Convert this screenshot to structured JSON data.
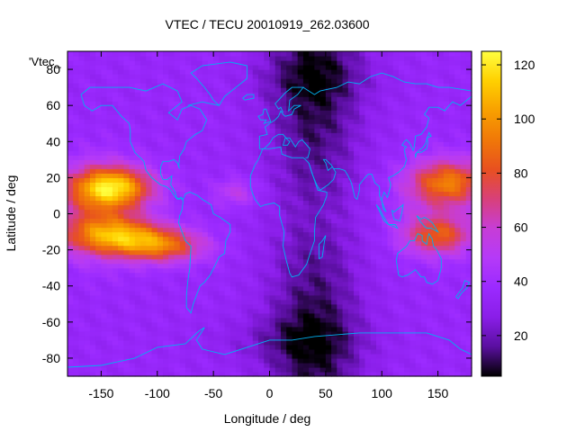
{
  "chart_data": {
    "type": "heatmap",
    "title": "VTEC / TECU 20010919_262.03600",
    "xlabel": "Longitude / deg",
    "ylabel": "Latitude / deg",
    "series_label": "'Vtec_",
    "xlim": [
      -180,
      180
    ],
    "ylim": [
      -90,
      90
    ],
    "x_ticks": [
      -150,
      -100,
      -50,
      0,
      50,
      100,
      150
    ],
    "y_ticks": [
      -80,
      -60,
      -40,
      -20,
      0,
      20,
      40,
      60,
      80
    ],
    "colorbar": {
      "range": [
        5,
        125
      ],
      "ticks": [
        20,
        40,
        60,
        80,
        100,
        120
      ],
      "palette": [
        "#000000",
        "#5a0fa0",
        "#8a1ee8",
        "#9b2aff",
        "#b53af8",
        "#c73dd6",
        "#d8407a",
        "#e85020",
        "#f07808",
        "#f8a000",
        "#ffd000",
        "#ffff40"
      ]
    },
    "features": {
      "daytime_crest_west": {
        "lon_range": [
          -180,
          -60
        ],
        "lat_range": [
          -35,
          35
        ],
        "peak_value": 120,
        "peak_at": [
          -140,
          15
        ]
      },
      "daytime_crest_east": {
        "lon_range": [
          110,
          180
        ],
        "lat_range": [
          -25,
          35
        ],
        "peak_value": 90
      },
      "night_trough": {
        "lon_range": [
          -10,
          90
        ],
        "lat_range": [
          -90,
          90
        ],
        "min_value": 8
      },
      "background_value": 35
    },
    "overlay": "coastlines",
    "colors": {
      "coastline": "#00b0f0",
      "frame": "#000000"
    }
  }
}
